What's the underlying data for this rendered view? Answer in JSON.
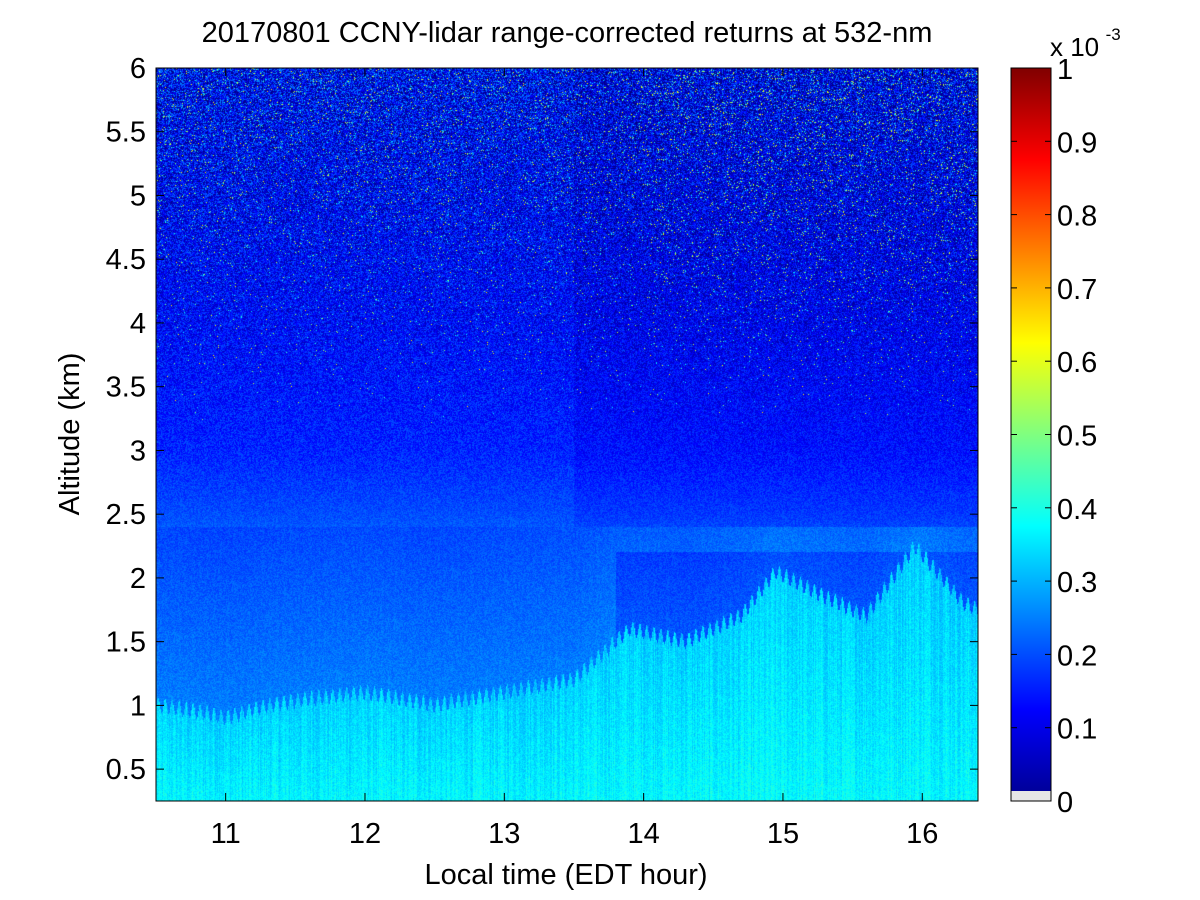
{
  "chart_data": {
    "type": "heatmap",
    "title": "20170801 CCNY-lidar range-corrected returns at 532-nm",
    "xlabel": "Local time (EDT hour)",
    "ylabel": "Altitude (km)",
    "xlim": [
      10.5,
      16.4
    ],
    "ylim": [
      0.25,
      6.0
    ],
    "x_ticks": [
      11,
      12,
      13,
      14,
      15,
      16
    ],
    "x_tick_labels": [
      "11",
      "12",
      "13",
      "14",
      "15",
      "16"
    ],
    "y_ticks": [
      0.5,
      1,
      1.5,
      2,
      2.5,
      3,
      3.5,
      4,
      4.5,
      5,
      5.5,
      6
    ],
    "y_tick_labels": [
      "0.5",
      "1",
      "1.5",
      "2",
      "2.5",
      "3",
      "3.5",
      "4",
      "4.5",
      "5",
      "5.5",
      "6"
    ],
    "colorbar": {
      "colormap": "jet",
      "range": [
        0,
        1
      ],
      "ticks": [
        0,
        0.1,
        0.2,
        0.3,
        0.4,
        0.5,
        0.6,
        0.7,
        0.8,
        0.9,
        1
      ],
      "tick_labels": [
        "0",
        "0.1",
        "0.2",
        "0.3",
        "0.4",
        "0.5",
        "0.6",
        "0.7",
        "0.8",
        "0.9",
        "1"
      ],
      "multiplier_base": "x 10",
      "multiplier_exponent": "-3",
      "below_range_color": "#e6e6e6"
    },
    "boundary_layer_top_km": [
      {
        "t": 10.5,
        "h": 1.0
      },
      {
        "t": 10.8,
        "h": 0.95
      },
      {
        "t": 11.0,
        "h": 0.9
      },
      {
        "t": 11.3,
        "h": 1.0
      },
      {
        "t": 11.6,
        "h": 1.05
      },
      {
        "t": 12.0,
        "h": 1.1
      },
      {
        "t": 12.5,
        "h": 1.0
      },
      {
        "t": 13.0,
        "h": 1.1
      },
      {
        "t": 13.5,
        "h": 1.2
      },
      {
        "t": 13.9,
        "h": 1.6
      },
      {
        "t": 14.3,
        "h": 1.5
      },
      {
        "t": 14.7,
        "h": 1.7
      },
      {
        "t": 14.95,
        "h": 2.05
      },
      {
        "t": 15.3,
        "h": 1.85
      },
      {
        "t": 15.6,
        "h": 1.7
      },
      {
        "t": 15.95,
        "h": 2.25
      },
      {
        "t": 16.3,
        "h": 1.8
      },
      {
        "t": 16.4,
        "h": 1.75
      }
    ],
    "aerosol_layer_top_km": 2.2,
    "value_profile_x1e3": [
      {
        "h": 0.3,
        "v": 0.36
      },
      {
        "h": 0.8,
        "v": 0.38
      },
      {
        "h": 1.0,
        "v": 0.34
      },
      {
        "h": 1.5,
        "v": 0.3
      },
      {
        "h": 2.0,
        "v": 0.26
      },
      {
        "h": 2.5,
        "v": 0.2
      },
      {
        "h": 3.0,
        "v": 0.16
      },
      {
        "h": 4.0,
        "v": 0.13
      },
      {
        "h": 5.0,
        "v": 0.12
      },
      {
        "h": 6.0,
        "v": 0.12
      }
    ]
  }
}
